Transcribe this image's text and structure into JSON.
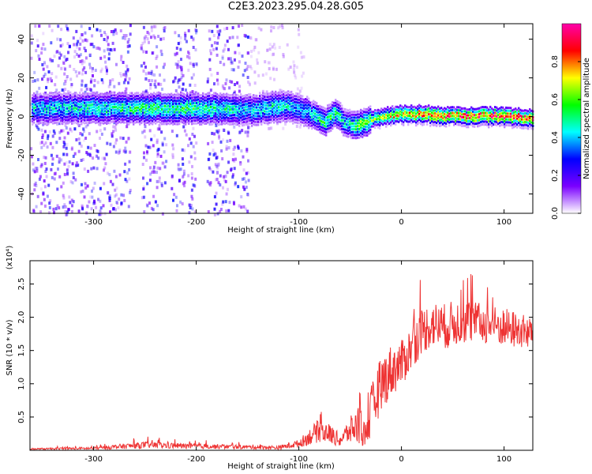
{
  "title": "C2E3.2023.295.04.28.G05",
  "chart_data": [
    {
      "type": "heatmap",
      "xlabel": "Height of straight line (km)",
      "ylabel": "Frequency (Hz)",
      "xlim": [
        -362,
        128
      ],
      "ylim": [
        -50,
        48
      ],
      "xticks": [
        -300,
        -200,
        -100,
        0,
        100
      ],
      "yticks": [
        -40,
        -20,
        0,
        20,
        40
      ],
      "colorbar": {
        "label": "Normalized spectral amplitude",
        "range": [
          0,
          1
        ],
        "ticks": [
          "0.0",
          "0.2",
          "0.4",
          "0.6",
          "0.8"
        ],
        "tick_values": [
          0.0,
          0.2,
          0.4,
          0.6,
          0.8
        ],
        "colormap": [
          "#ffffff",
          "#7a00ff",
          "#0000ff",
          "#00ffff",
          "#00ff00",
          "#ffff00",
          "#ff0000",
          "#ff00aa"
        ]
      },
      "ridge": {
        "x": [
          -350,
          -300,
          -250,
          -200,
          -150,
          -120,
          -100,
          -85,
          -75,
          -65,
          -55,
          -45,
          -30,
          -15,
          0,
          20,
          40,
          60,
          80,
          100,
          120
        ],
        "frequency": [
          4,
          4,
          4,
          4,
          3,
          5,
          4,
          0,
          -3,
          2,
          -4,
          -5,
          -2,
          0,
          1,
          1,
          0,
          0,
          0,
          0,
          -1
        ],
        "amplitude": [
          0.45,
          0.5,
          0.55,
          0.55,
          0.45,
          0.5,
          0.4,
          0.5,
          0.55,
          0.55,
          0.45,
          0.6,
          0.65,
          0.7,
          0.78,
          0.85,
          0.88,
          0.9,
          0.92,
          0.92,
          0.9
        ]
      },
      "noise_bands": [
        [
          -362,
          -330
        ],
        [
          -330,
          -265
        ],
        [
          -255,
          -230
        ],
        [
          -225,
          -200
        ],
        [
          -190,
          -150
        ]
      ]
    },
    {
      "type": "line",
      "xlabel": "Height of straight line (km)",
      "ylabel": "SNR (10 * v/v)",
      "y_multiplier": "(x10⁴)",
      "xlim": [
        -362,
        128
      ],
      "ylim": [
        0,
        2.85
      ],
      "xticks": [
        -300,
        -200,
        -100,
        0,
        100
      ],
      "yticks": [
        0.5,
        1.0,
        1.5,
        2.0,
        2.5
      ],
      "series": [
        {
          "color": "#ee3333",
          "x": [
            -362,
            -300,
            -270,
            -250,
            -200,
            -150,
            -120,
            -100,
            -90,
            -80,
            -70,
            -60,
            -50,
            -40,
            -35,
            -30,
            -20,
            -10,
            0,
            10,
            20,
            30,
            40,
            60,
            80,
            100,
            128
          ],
          "y": [
            0.02,
            0.03,
            0.06,
            0.08,
            0.06,
            0.05,
            0.04,
            0.1,
            0.2,
            0.3,
            0.25,
            0.15,
            0.3,
            0.4,
            0.2,
            0.55,
            1.0,
            1.2,
            1.3,
            1.55,
            1.8,
            1.9,
            1.85,
            1.95,
            1.9,
            1.85,
            1.75
          ],
          "noise": [
            0.01,
            0.02,
            0.04,
            0.05,
            0.04,
            0.03,
            0.03,
            0.06,
            0.12,
            0.18,
            0.15,
            0.1,
            0.2,
            0.35,
            0.15,
            0.4,
            0.4,
            0.4,
            0.35,
            0.35,
            0.35,
            0.35,
            0.35,
            0.35,
            0.3,
            0.3,
            0.25
          ]
        }
      ]
    }
  ]
}
